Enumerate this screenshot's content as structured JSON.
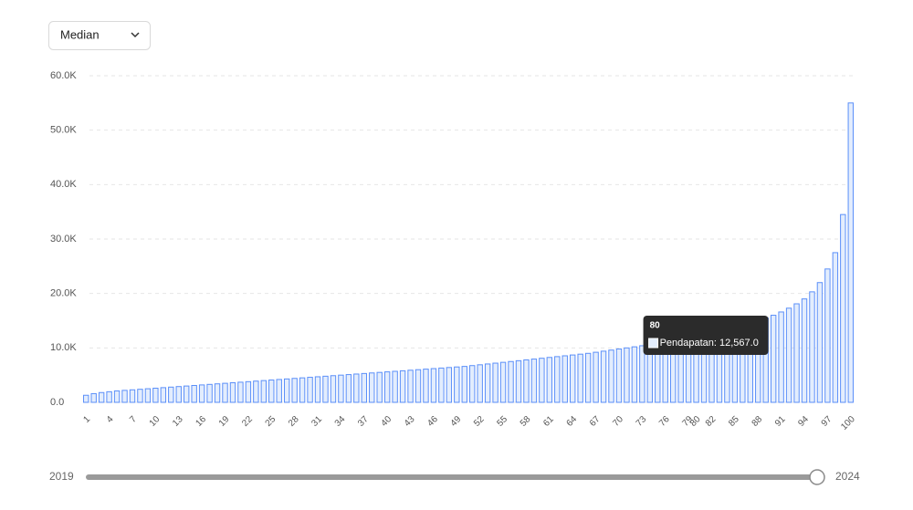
{
  "controls": {
    "dropdown": "Median",
    "slider_start": "2019",
    "slider_end": "2024"
  },
  "chart_data": {
    "type": "bar",
    "series": [
      {
        "name": "Pendapatan",
        "color": "#5b8ff9",
        "fill": "#e3edfd",
        "values": [
          1300,
          1600,
          1800,
          1950,
          2100,
          2200,
          2300,
          2400,
          2500,
          2600,
          2700,
          2800,
          2900,
          3000,
          3100,
          3200,
          3300,
          3400,
          3500,
          3600,
          3700,
          3800,
          3900,
          4000,
          4100,
          4200,
          4300,
          4400,
          4500,
          4600,
          4700,
          4800,
          4900,
          5000,
          5100,
          5200,
          5300,
          5400,
          5500,
          5600,
          5700,
          5800,
          5900,
          6000,
          6100,
          6200,
          6300,
          6400,
          6500,
          6600,
          6750,
          6900,
          7050,
          7200,
          7350,
          7500,
          7650,
          7800,
          7950,
          8100,
          8250,
          8400,
          8550,
          8700,
          8850,
          9000,
          9200,
          9400,
          9600,
          9800,
          10000,
          10200,
          10400,
          10650,
          10900,
          11150,
          11400,
          11700,
          12100,
          12567,
          12800,
          13050,
          13300,
          13600,
          13900,
          14200,
          14600,
          15000,
          15500,
          16000,
          16600,
          17300,
          18100,
          19000,
          20300,
          22000,
          24500,
          27500,
          34500,
          55000
        ]
      }
    ],
    "categories": [
      "1",
      null,
      null,
      "4",
      null,
      null,
      "7",
      null,
      null,
      "10",
      null,
      null,
      "13",
      null,
      null,
      "16",
      null,
      null,
      "19",
      null,
      null,
      "22",
      null,
      null,
      "25",
      null,
      null,
      "28",
      null,
      null,
      "31",
      null,
      null,
      "34",
      null,
      null,
      "37",
      null,
      null,
      "40",
      null,
      null,
      "43",
      null,
      null,
      "46",
      null,
      null,
      "49",
      null,
      null,
      "52",
      null,
      null,
      "55",
      null,
      null,
      "58",
      null,
      null,
      "61",
      null,
      null,
      "64",
      null,
      null,
      "67",
      null,
      null,
      "70",
      null,
      null,
      "73",
      null,
      null,
      "76",
      null,
      null,
      "79",
      "80",
      null,
      "82",
      null,
      null,
      "85",
      null,
      null,
      "88",
      null,
      null,
      "91",
      null,
      null,
      "94",
      null,
      null,
      "97",
      null,
      null,
      "100"
    ],
    "ylim": [
      0,
      60000
    ],
    "yticks": [
      {
        "value": 0,
        "label": "0.0"
      },
      {
        "value": 10000,
        "label": "10.0K"
      },
      {
        "value": 20000,
        "label": "20.0K"
      },
      {
        "value": 30000,
        "label": "30.0K"
      },
      {
        "value": 40000,
        "label": "40.0K"
      },
      {
        "value": 50000,
        "label": "50.0K"
      },
      {
        "value": 60000,
        "label": "60.0K"
      }
    ],
    "grid": true,
    "tooltip": {
      "index": 79,
      "text": "Pendapatan: 12,567.0"
    }
  }
}
